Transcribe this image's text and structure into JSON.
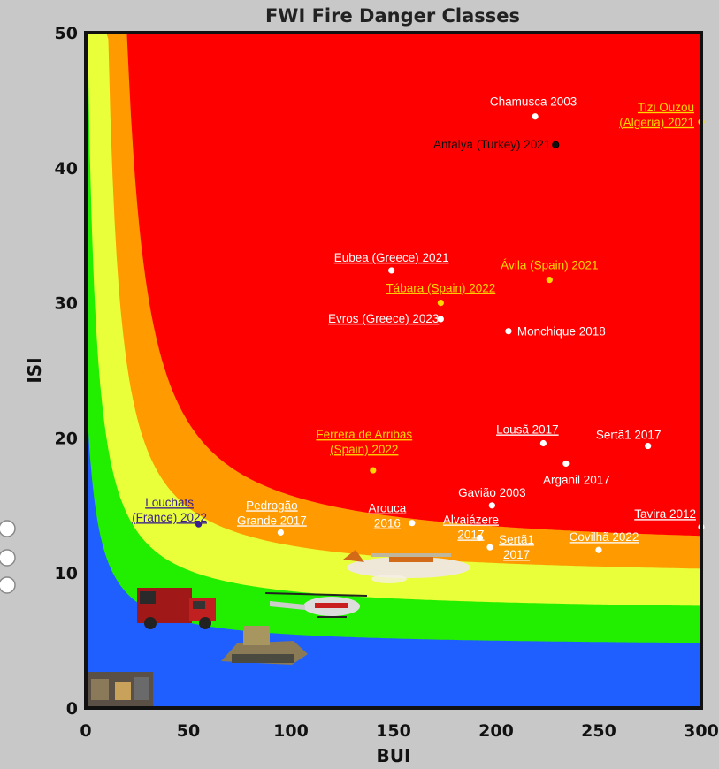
{
  "chart_data": {
    "type": "scatter",
    "title": "FWI Fire Danger Classes",
    "xlabel": "BUI",
    "ylabel": "ISI",
    "xlim": [
      0,
      300
    ],
    "ylim": [
      0,
      50
    ],
    "xticks": [
      "0",
      "50",
      "100",
      "150",
      "200",
      "250",
      "300"
    ],
    "yticks": [
      "0",
      "10",
      "20",
      "30",
      "40",
      "50"
    ],
    "danger_classes": [
      {
        "color": "#1f5fff"
      },
      {
        "color": "#22ee00"
      },
      {
        "color": "#e8ff3a"
      },
      {
        "color": "#ff9a00"
      },
      {
        "color": "#ff0000"
      }
    ],
    "points": [
      {
        "label": [
          "Chamusca 2003"
        ],
        "x": 219,
        "y": 43.8,
        "color": "#ffffff",
        "underline": false
      },
      {
        "label": [
          "Tizi Ouzou",
          "(Algeria) 2021"
        ],
        "x": 300,
        "y": 43.4,
        "color": "#ffd700",
        "underline": true
      },
      {
        "label": [
          "Antalya (Turkey) 2021"
        ],
        "x": 229,
        "y": 41.7,
        "color": "#111111",
        "underline": false
      },
      {
        "label": [
          "Eubea (Greece) 2021"
        ],
        "x": 149,
        "y": 32.4,
        "color": "#ffffff",
        "underline": true
      },
      {
        "label": [
          "Ávila (Spain) 2021"
        ],
        "x": 226,
        "y": 31.7,
        "color": "#ffd700",
        "underline": false
      },
      {
        "label": [
          "Tábara (Spain) 2022"
        ],
        "x": 173,
        "y": 30.0,
        "color": "#ffd700",
        "underline": true
      },
      {
        "label": [
          "Evros (Greece) 2023"
        ],
        "x": 173,
        "y": 28.8,
        "color": "#ffffff",
        "underline": true
      },
      {
        "label": [
          "Monchique 2018"
        ],
        "x": 206,
        "y": 27.9,
        "color": "#ffffff",
        "underline": false
      },
      {
        "label": [
          "Lousã 2017"
        ],
        "x": 223,
        "y": 19.6,
        "color": "#ffffff",
        "underline": true
      },
      {
        "label": [
          "Sertã1 2017"
        ],
        "x": 274,
        "y": 19.4,
        "color": "#ffffff",
        "underline": false
      },
      {
        "label": [
          "Arganil 2017"
        ],
        "x": 234,
        "y": 18.1,
        "color": "#ffffff",
        "underline": false
      },
      {
        "label": [
          "Ferrera de Arribas",
          "(Spain) 2022"
        ],
        "x": 140,
        "y": 17.6,
        "color": "#ffd700",
        "underline": true
      },
      {
        "label": [
          "Gavião 2003"
        ],
        "x": 198,
        "y": 15.0,
        "color": "#ffffff",
        "underline": false
      },
      {
        "label": [
          "Louchats",
          "(France) 2022"
        ],
        "x": 55,
        "y": 13.6,
        "color": "#3a1e8c",
        "underline": true
      },
      {
        "label": [
          "Pedrogão",
          "Grande 2017"
        ],
        "x": 95,
        "y": 13.0,
        "color": "#ffffff",
        "underline": true
      },
      {
        "label": [
          "Arouca",
          "2016"
        ],
        "x": 159,
        "y": 13.7,
        "color": "#ffffff",
        "underline": true
      },
      {
        "label": [
          "Alvaiázere",
          "2017"
        ],
        "x": 192,
        "y": 12.6,
        "color": "#ffffff",
        "underline": true
      },
      {
        "label": [
          "Sertã1",
          "2017"
        ],
        "x": 197,
        "y": 11.9,
        "color": "#ffffff",
        "underline": true
      },
      {
        "label": [
          "Tavira 2012"
        ],
        "x": 300,
        "y": 13.4,
        "color": "#ffffff",
        "underline": true
      },
      {
        "label": [
          "Covilhã 2022"
        ],
        "x": 250,
        "y": 11.7,
        "color": "#ffffff",
        "underline": true
      }
    ]
  }
}
